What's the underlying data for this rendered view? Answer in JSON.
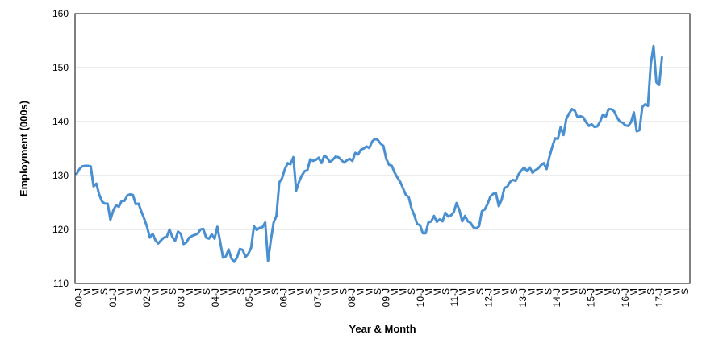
{
  "chart_data": {
    "type": "line",
    "title": "",
    "xlabel": "Year & Month",
    "ylabel": "Employment (000s)",
    "ylim": [
      110,
      160
    ],
    "yticks": [
      110,
      120,
      130,
      140,
      150,
      160
    ],
    "grid": true,
    "legend": "none",
    "colors": {
      "line": "#4a90d0",
      "grid": "#d9d9d9",
      "axis": "#000000"
    },
    "x_tick_labels": [
      "00-J",
      "M",
      "M",
      "S",
      "01-J",
      "M",
      "M",
      "S",
      "02-J",
      "M",
      "M",
      "S",
      "03-J",
      "M",
      "M",
      "S",
      "04-J",
      "M",
      "M",
      "S",
      "05-J",
      "M",
      "M",
      "S",
      "06-J",
      "M",
      "M",
      "S",
      "07-J",
      "M",
      "M",
      "S",
      "08-J",
      "M",
      "M",
      "S",
      "09-J",
      "M",
      "M",
      "S",
      "10-J",
      "M",
      "M",
      "S",
      "11-J",
      "M",
      "M",
      "S",
      "12-J",
      "M",
      "M",
      "S",
      "13-J",
      "M",
      "M",
      "S",
      "14-J",
      "M",
      "M",
      "S",
      "15-J",
      "M",
      "M",
      "S",
      "16-J",
      "M",
      "M",
      "S",
      "17-J",
      "M",
      "M",
      "S"
    ],
    "series": [
      {
        "values": [
          130.3,
          131.2,
          131.7,
          131.8,
          131.8,
          131.7,
          128.0,
          128.5,
          126.5,
          125.2,
          124.8,
          124.8,
          121.8,
          123.5,
          124.5,
          124.2,
          125.3,
          125.3,
          126.3,
          126.5,
          126.4,
          124.7,
          124.8,
          123.3,
          122.0,
          120.5,
          118.5,
          119.2,
          118.0,
          117.4,
          118.0,
          118.5,
          118.6,
          120.0,
          118.6,
          117.9,
          119.6,
          119.2,
          117.3,
          117.6,
          118.5,
          118.8,
          119.0,
          119.2,
          120.0,
          120.1,
          118.5,
          118.3,
          119.1,
          118.3,
          120.5,
          117.7,
          114.8,
          115.0,
          116.3,
          114.6,
          114.0,
          114.8,
          116.4,
          116.2,
          114.9,
          115.5,
          116.6,
          120.6,
          119.9,
          120.3,
          120.4,
          121.3,
          114.2,
          118.0,
          121.3,
          122.5,
          128.7,
          129.5,
          131.2,
          132.3,
          132.1,
          133.4,
          127.2,
          128.8,
          130.0,
          130.8,
          131.0,
          133.0,
          132.7,
          132.9,
          133.3,
          132.3,
          133.7,
          133.3,
          132.5,
          132.9,
          133.5,
          133.4,
          132.9,
          132.4,
          132.8,
          133.1,
          132.7,
          134.2,
          133.9,
          134.8,
          135.0,
          135.4,
          135.1,
          136.3,
          136.8,
          136.6,
          135.9,
          135.5,
          133.1,
          132.0,
          131.8,
          130.5,
          129.6,
          128.8,
          127.6,
          126.4,
          126.0,
          123.9,
          122.6,
          121.0,
          120.8,
          119.3,
          119.3,
          121.3,
          121.5,
          122.5,
          121.4,
          121.9,
          121.5,
          123.1,
          122.4,
          122.6,
          123.2,
          124.9,
          123.6,
          121.5,
          122.5,
          121.5,
          121.2,
          120.4,
          120.2,
          120.6,
          123.4,
          123.7,
          124.7,
          126.1,
          126.6,
          126.7,
          124.3,
          125.5,
          127.7,
          127.9,
          128.8,
          129.2,
          129.0,
          130.2,
          130.9,
          131.5,
          130.8,
          131.5,
          130.5,
          131.0,
          131.3,
          131.9,
          132.3,
          131.2,
          133.5,
          135.3,
          136.9,
          136.8,
          139.0,
          137.5,
          140.5,
          141.5,
          142.3,
          142.0,
          140.8,
          141.0,
          140.8,
          139.9,
          139.2,
          139.5,
          139.0,
          139.1,
          140.0,
          141.3,
          140.9,
          142.3,
          142.3,
          141.9,
          140.8,
          140.0,
          139.8,
          139.3,
          139.2,
          139.9,
          141.7,
          138.2,
          138.4,
          142.7,
          143.2,
          142.9,
          150.6,
          154.0,
          147.3,
          146.8,
          151.9
        ]
      }
    ]
  }
}
